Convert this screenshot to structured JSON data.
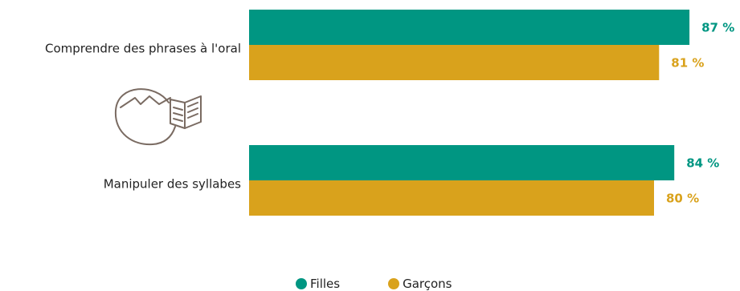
{
  "chart_data": {
    "type": "bar",
    "orientation": "horizontal",
    "categories": [
      "Comprendre des phrases à l'oral",
      "Manipuler des syllabes"
    ],
    "series": [
      {
        "name": "Filles",
        "values": [
          87,
          84
        ],
        "value_labels": [
          "87 %",
          "84 %"
        ],
        "color": "#009682"
      },
      {
        "name": "Garçons",
        "values": [
          81,
          80
        ],
        "value_labels": [
          "81 %",
          "80 %"
        ],
        "color": "#d9a21c"
      }
    ],
    "xlim": [
      0,
      100
    ],
    "grid": false,
    "axes_visible": false,
    "legend_position": "bottom"
  },
  "decor": {
    "icon": "child-reading-book-icon",
    "icon_color": "#7a6b62"
  }
}
